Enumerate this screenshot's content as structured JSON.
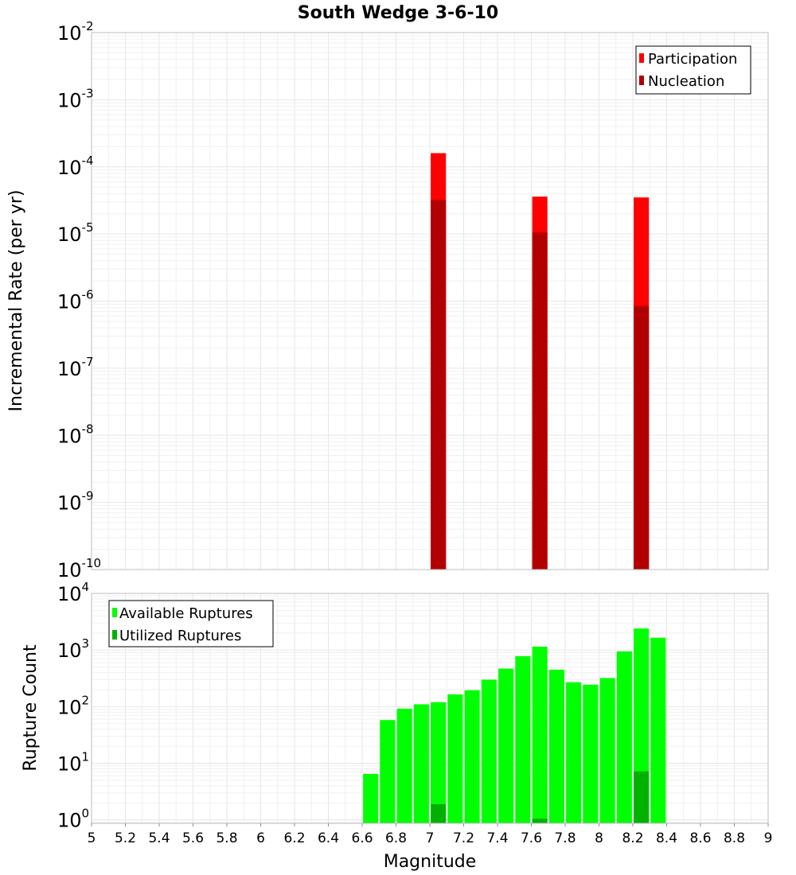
{
  "chart_data": [
    {
      "id": "rate",
      "type": "bar",
      "title": "South Wedge 3-6-10",
      "xlabel": "",
      "ylabel": "Incremental Rate (per yr)",
      "xlim": [
        5,
        9
      ],
      "ylim_log10": [
        -10,
        -2
      ],
      "yscale": "log",
      "y_tick_exponents": [
        -10,
        -9,
        -8,
        -7,
        -6,
        -5,
        -4,
        -3,
        -2
      ],
      "bar_width": 0.09,
      "grid": true,
      "legend_position": "top-right",
      "series": [
        {
          "name": "Participation",
          "color": "#ff0000",
          "points": [
            {
              "x": 7.05,
              "y": 0.00016
            },
            {
              "x": 7.65,
              "y": 3.6e-05
            },
            {
              "x": 8.25,
              "y": 3.5e-05
            }
          ]
        },
        {
          "name": "Nucleation",
          "color": "#b20000",
          "points": [
            {
              "x": 7.05,
              "y": 3.2e-05
            },
            {
              "x": 7.65,
              "y": 1.05e-05
            },
            {
              "x": 8.25,
              "y": 8.5e-07
            }
          ]
        }
      ]
    },
    {
      "id": "count",
      "type": "bar",
      "title": "",
      "xlabel": "Magnitude",
      "ylabel": "Rupture Count",
      "xlim": [
        5,
        9
      ],
      "ylim_log10": [
        -0.06,
        4
      ],
      "yscale": "log",
      "y_tick_exponents": [
        0,
        1,
        2,
        3,
        4
      ],
      "bar_width": 0.09,
      "grid": true,
      "legend_position": "top-left",
      "x_ticks": [
        "5",
        "5.2",
        "5.4",
        "5.6",
        "5.8",
        "6",
        "6.2",
        "6.4",
        "6.6",
        "6.8",
        "7",
        "7.2",
        "7.4",
        "7.6",
        "7.8",
        "8",
        "8.2",
        "8.4",
        "8.6",
        "8.8",
        "9"
      ],
      "series": [
        {
          "name": "Available Ruptures",
          "color": "#00ff00",
          "points": [
            {
              "x": 6.65,
              "y": 6.5
            },
            {
              "x": 6.75,
              "y": 58
            },
            {
              "x": 6.85,
              "y": 92
            },
            {
              "x": 6.95,
              "y": 110
            },
            {
              "x": 7.05,
              "y": 120
            },
            {
              "x": 7.15,
              "y": 165
            },
            {
              "x": 7.25,
              "y": 195
            },
            {
              "x": 7.35,
              "y": 300
            },
            {
              "x": 7.45,
              "y": 470
            },
            {
              "x": 7.55,
              "y": 780
            },
            {
              "x": 7.65,
              "y": 1150
            },
            {
              "x": 7.75,
              "y": 450
            },
            {
              "x": 7.85,
              "y": 270
            },
            {
              "x": 7.95,
              "y": 245
            },
            {
              "x": 8.05,
              "y": 320
            },
            {
              "x": 8.15,
              "y": 950
            },
            {
              "x": 8.25,
              "y": 2400
            },
            {
              "x": 8.35,
              "y": 1650
            }
          ]
        },
        {
          "name": "Utilized Ruptures",
          "color": "#00b200",
          "points": [
            {
              "x": 7.05,
              "y": 1.9
            },
            {
              "x": 7.65,
              "y": 1.05
            },
            {
              "x": 8.25,
              "y": 7.2
            }
          ]
        }
      ]
    }
  ]
}
